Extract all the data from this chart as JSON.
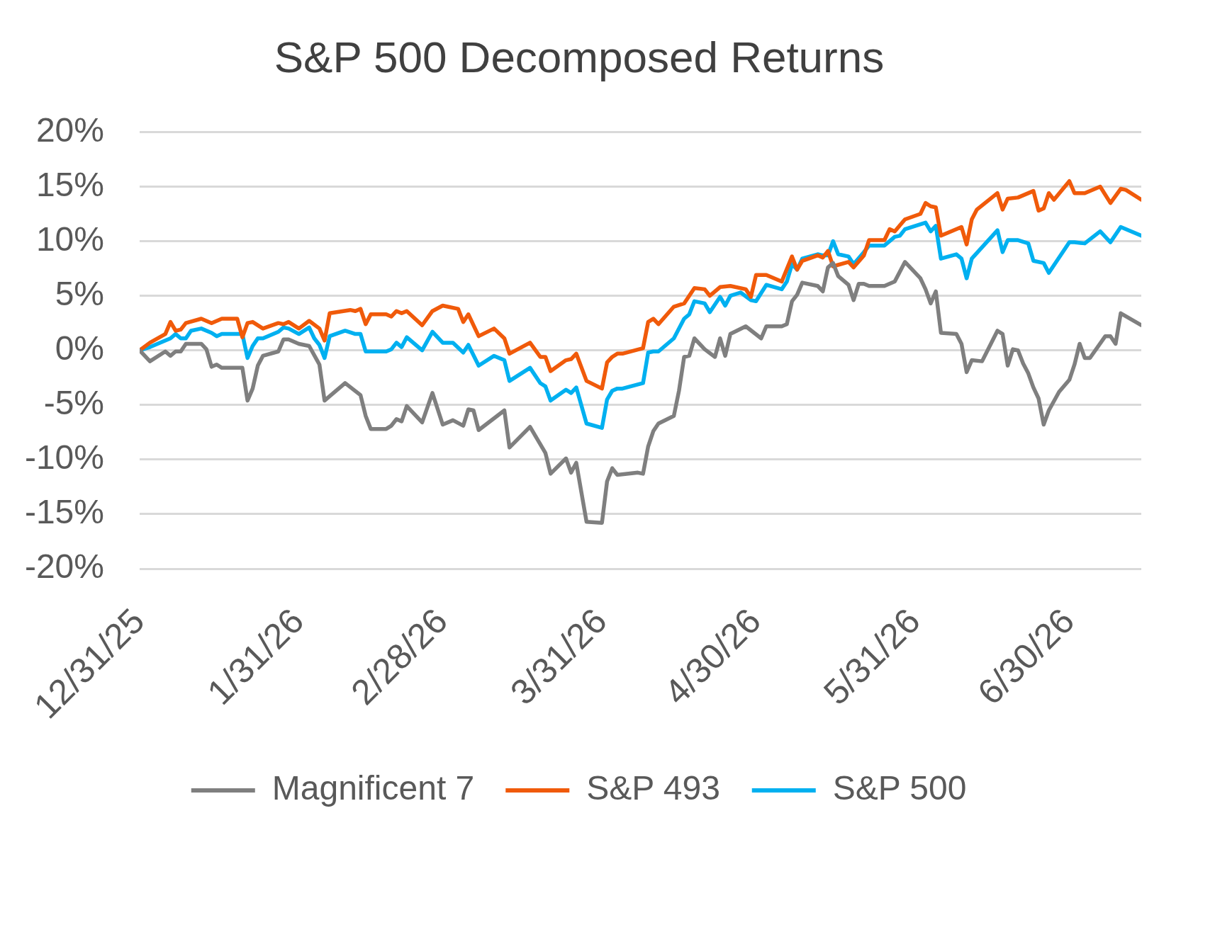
{
  "chart_data": {
    "type": "line",
    "title": "S&P 500 Decomposed Returns",
    "xlim": [
      "2025-12-31",
      "2026-07-14"
    ],
    "xticks": [
      {
        "value": "2025-12-31",
        "label": "12/31/25"
      },
      {
        "value": "2026-01-31",
        "label": "1/31/26"
      },
      {
        "value": "2026-02-28",
        "label": "2/28/26"
      },
      {
        "value": "2026-03-31",
        "label": "3/31/26"
      },
      {
        "value": "2026-04-30",
        "label": "4/30/26"
      },
      {
        "value": "2026-05-31",
        "label": "5/31/26"
      },
      {
        "value": "2026-06-30",
        "label": "6/30/26"
      }
    ],
    "ylim": [
      -20,
      20
    ],
    "yticks": [
      {
        "value": -20,
        "label": "-20%"
      },
      {
        "value": -15,
        "label": "-15%"
      },
      {
        "value": -10,
        "label": "-10%"
      },
      {
        "value": -5,
        "label": "-5%"
      },
      {
        "value": 0,
        "label": "0%"
      },
      {
        "value": 5,
        "label": "5%"
      },
      {
        "value": 10,
        "label": "10%"
      },
      {
        "value": 15,
        "label": "15%"
      },
      {
        "value": 20,
        "label": "20%"
      }
    ],
    "grid": "y",
    "legend": "bottom",
    "series": [
      {
        "name": "Magnificent 7",
        "color": "#7f7f7f",
        "x": [
          "2025-12-31",
          "2026-01-02",
          "2026-01-05",
          "2026-01-06",
          "2026-01-07",
          "2026-01-08",
          "2026-01-09",
          "2026-01-12",
          "2026-01-13",
          "2026-01-14",
          "2026-01-15",
          "2026-01-16",
          "2026-01-20",
          "2026-01-21",
          "2026-01-22",
          "2026-01-23",
          "2026-01-24",
          "2026-01-27",
          "2026-01-28",
          "2026-01-29",
          "2026-01-31",
          "2026-02-02",
          "2026-02-04",
          "2026-02-05",
          "2026-02-06",
          "2026-02-09",
          "2026-02-12",
          "2026-02-13",
          "2026-02-14",
          "2026-02-17",
          "2026-02-18",
          "2026-02-19",
          "2026-02-20",
          "2026-02-21",
          "2026-02-24",
          "2026-02-26",
          "2026-02-28",
          "2026-03-02",
          "2026-03-04",
          "2026-03-05",
          "2026-03-06",
          "2026-03-07",
          "2026-03-12",
          "2026-03-13",
          "2026-03-17",
          "2026-03-20",
          "2026-03-21",
          "2026-03-24",
          "2026-03-25",
          "2026-03-26",
          "2026-03-28",
          "2026-03-31",
          "2026-04-01",
          "2026-04-02",
          "2026-04-03",
          "2026-04-07",
          "2026-04-08",
          "2026-04-09",
          "2026-04-10",
          "2026-04-11",
          "2026-04-14",
          "2026-04-15",
          "2026-04-16",
          "2026-04-17",
          "2026-04-18",
          "2026-04-20",
          "2026-04-22",
          "2026-04-23",
          "2026-04-24",
          "2026-04-25",
          "2026-04-28",
          "2026-05-01",
          "2026-05-02",
          "2026-05-05",
          "2026-05-06",
          "2026-05-07",
          "2026-05-08",
          "2026-05-09",
          "2026-05-12",
          "2026-05-13",
          "2026-05-14",
          "2026-05-15",
          "2026-05-16",
          "2026-05-18",
          "2026-05-19",
          "2026-05-20",
          "2026-05-21",
          "2026-05-22",
          "2026-05-25",
          "2026-05-27",
          "2026-05-29",
          "2026-06-01",
          "2026-06-02",
          "2026-06-03",
          "2026-06-04",
          "2026-06-05",
          "2026-06-08",
          "2026-06-09",
          "2026-06-10",
          "2026-06-11",
          "2026-06-13",
          "2026-06-16",
          "2026-06-17",
          "2026-06-18",
          "2026-06-19",
          "2026-06-20",
          "2026-06-21",
          "2026-06-22",
          "2026-06-23",
          "2026-06-24",
          "2026-06-25",
          "2026-06-26",
          "2026-06-28",
          "2026-06-30",
          "2026-07-01",
          "2026-07-02",
          "2026-07-03",
          "2026-07-04",
          "2026-07-07",
          "2026-07-08",
          "2026-07-09",
          "2026-07-10",
          "2026-07-14"
        ],
        "values": [
          0,
          -1.0,
          -0.1,
          -0.5,
          -0.1,
          -0.1,
          0.6,
          0.6,
          0.1,
          -1.5,
          -1.3,
          -1.6,
          -1.6,
          -4.6,
          -3.5,
          -1.4,
          -0.5,
          -0.1,
          1.0,
          1.0,
          0.6,
          0.4,
          -1.3,
          -4.6,
          -4.2,
          -3.0,
          -4.1,
          -6.0,
          -7.2,
          -7.2,
          -6.9,
          -6.3,
          -6.5,
          -5.1,
          -6.6,
          -3.9,
          -6.8,
          -6.4,
          -6.9,
          -5.4,
          -5.5,
          -7.3,
          -5.5,
          -8.9,
          -7.0,
          -9.4,
          -11.3,
          -9.9,
          -11.2,
          -10.3,
          -15.7,
          -15.8,
          -12.0,
          -10.8,
          -11.4,
          -11.2,
          -11.3,
          -8.8,
          -7.4,
          -6.7,
          -6.0,
          -3.7,
          -0.6,
          -0.5,
          1.1,
          0.1,
          -0.6,
          1.1,
          -0.5,
          1.5,
          2.2,
          1.1,
          2.2,
          2.2,
          2.4,
          4.5,
          5.1,
          6.2,
          5.9,
          5.4,
          7.6,
          8.0,
          6.8,
          6.0,
          4.6,
          6.1,
          6.1,
          5.9,
          5.9,
          6.3,
          8.1,
          6.6,
          5.6,
          4.3,
          5.4,
          1.6,
          1.5,
          0.6,
          -2.0,
          -0.9,
          -1.0,
          1.8,
          1.5,
          -1.4,
          0.1,
          0.0,
          -1.2,
          -2.1,
          -3.4,
          -4.4,
          -6.8,
          -5.5,
          -3.8,
          -2.7,
          -1.3,
          0.6,
          -0.7,
          -0.7,
          1.3,
          1.3,
          0.6,
          3.4,
          2.3
        ]
      },
      {
        "name": "S&P 493",
        "color": "#f05a0a",
        "x": [
          "2025-12-31",
          "2026-01-02",
          "2026-01-05",
          "2026-01-06",
          "2026-01-07",
          "2026-01-08",
          "2026-01-09",
          "2026-01-12",
          "2026-01-14",
          "2026-01-16",
          "2026-01-19",
          "2026-01-20",
          "2026-01-21",
          "2026-01-22",
          "2026-01-24",
          "2026-01-27",
          "2026-01-28",
          "2026-01-29",
          "2026-01-31",
          "2026-02-02",
          "2026-02-04",
          "2026-02-05",
          "2026-02-06",
          "2026-02-10",
          "2026-02-11",
          "2026-02-12",
          "2026-02-13",
          "2026-02-14",
          "2026-02-17",
          "2026-02-18",
          "2026-02-19",
          "2026-02-20",
          "2026-02-21",
          "2026-02-24",
          "2026-02-26",
          "2026-02-28",
          "2026-03-03",
          "2026-03-04",
          "2026-03-05",
          "2026-03-07",
          "2026-03-10",
          "2026-03-12",
          "2026-03-13",
          "2026-03-17",
          "2026-03-19",
          "2026-03-20",
          "2026-03-21",
          "2026-03-24",
          "2026-03-25",
          "2026-03-26",
          "2026-03-28",
          "2026-03-31",
          "2026-04-01",
          "2026-04-02",
          "2026-04-03",
          "2026-04-04",
          "2026-04-08",
          "2026-04-09",
          "2026-04-10",
          "2026-04-11",
          "2026-04-14",
          "2026-04-16",
          "2026-04-18",
          "2026-04-20",
          "2026-04-21",
          "2026-04-23",
          "2026-04-25",
          "2026-04-28",
          "2026-04-29",
          "2026-04-30",
          "2026-05-02",
          "2026-05-05",
          "2026-05-07",
          "2026-05-08",
          "2026-05-09",
          "2026-05-12",
          "2026-05-13",
          "2026-05-14",
          "2026-05-15",
          "2026-05-18",
          "2026-05-19",
          "2026-05-21",
          "2026-05-22",
          "2026-05-25",
          "2026-05-26",
          "2026-05-27",
          "2026-05-29",
          "2026-06-01",
          "2026-06-02",
          "2026-06-03",
          "2026-06-04",
          "2026-06-05",
          "2026-06-09",
          "2026-06-10",
          "2026-06-11",
          "2026-06-12",
          "2026-06-16",
          "2026-06-17",
          "2026-06-18",
          "2026-06-20",
          "2026-06-23",
          "2026-06-24",
          "2026-06-25",
          "2026-06-26",
          "2026-06-27",
          "2026-06-30",
          "2026-07-01",
          "2026-07-03",
          "2026-07-06",
          "2026-07-08",
          "2026-07-10",
          "2026-07-11",
          "2026-07-14"
        ],
        "values": [
          0,
          0.7,
          1.5,
          2.6,
          1.8,
          1.9,
          2.5,
          2.9,
          2.5,
          2.9,
          2.9,
          1.2,
          2.5,
          2.6,
          2.0,
          2.5,
          2.4,
          2.6,
          2.0,
          2.7,
          2.0,
          0.9,
          3.4,
          3.7,
          3.6,
          3.8,
          2.4,
          3.3,
          3.3,
          3.1,
          3.6,
          3.4,
          3.6,
          2.3,
          3.6,
          4.1,
          3.8,
          2.6,
          3.3,
          1.3,
          2.0,
          1.1,
          -0.3,
          0.7,
          -0.6,
          -0.6,
          -1.9,
          -0.9,
          -0.8,
          -0.3,
          -2.8,
          -3.5,
          -1.1,
          -0.6,
          -0.3,
          -0.3,
          0.2,
          2.6,
          2.9,
          2.4,
          4.0,
          4.3,
          5.7,
          5.6,
          5.0,
          5.8,
          5.9,
          5.6,
          4.9,
          6.9,
          6.9,
          6.3,
          8.6,
          7.4,
          8.2,
          8.7,
          8.5,
          9.1,
          7.7,
          8.1,
          7.6,
          8.7,
          10.1,
          10.1,
          11.1,
          10.9,
          12.0,
          12.5,
          13.5,
          13.2,
          13.1,
          10.5,
          11.3,
          9.7,
          12.0,
          12.9,
          14.4,
          12.9,
          13.9,
          14.0,
          14.6,
          12.8,
          13.0,
          14.4,
          13.8,
          15.5,
          14.4,
          14.4,
          15.0,
          13.5,
          14.8,
          14.7,
          13.8
        ]
      },
      {
        "name": "S&P 500",
        "color": "#00b0f0",
        "x": [
          "2025-12-31",
          "2026-01-02",
          "2026-01-06",
          "2026-01-07",
          "2026-01-08",
          "2026-01-09",
          "2026-01-10",
          "2026-01-12",
          "2026-01-14",
          "2026-01-15",
          "2026-01-16",
          "2026-01-20",
          "2026-01-21",
          "2026-01-22",
          "2026-01-23",
          "2026-01-24",
          "2026-01-27",
          "2026-01-28",
          "2026-01-29",
          "2026-01-31",
          "2026-02-02",
          "2026-02-03",
          "2026-02-04",
          "2026-02-05",
          "2026-02-06",
          "2026-02-09",
          "2026-02-11",
          "2026-02-12",
          "2026-02-13",
          "2026-02-17",
          "2026-02-18",
          "2026-02-19",
          "2026-02-20",
          "2026-02-21",
          "2026-02-24",
          "2026-02-26",
          "2026-02-28",
          "2026-03-02",
          "2026-03-04",
          "2026-03-05",
          "2026-03-07",
          "2026-03-10",
          "2026-03-12",
          "2026-03-13",
          "2026-03-17",
          "2026-03-19",
          "2026-03-20",
          "2026-03-21",
          "2026-03-24",
          "2026-03-25",
          "2026-03-26",
          "2026-03-28",
          "2026-03-31",
          "2026-04-01",
          "2026-04-02",
          "2026-04-03",
          "2026-04-04",
          "2026-04-08",
          "2026-04-09",
          "2026-04-10",
          "2026-04-11",
          "2026-04-14",
          "2026-04-16",
          "2026-04-17",
          "2026-04-18",
          "2026-04-20",
          "2026-04-21",
          "2026-04-23",
          "2026-04-24",
          "2026-04-25",
          "2026-04-27",
          "2026-04-29",
          "2026-04-30",
          "2026-05-02",
          "2026-05-05",
          "2026-05-06",
          "2026-05-07",
          "2026-05-08",
          "2026-05-09",
          "2026-05-12",
          "2026-05-13",
          "2026-05-14",
          "2026-05-15",
          "2026-05-16",
          "2026-05-18",
          "2026-05-19",
          "2026-05-21",
          "2026-05-22",
          "2026-05-25",
          "2026-05-27",
          "2026-05-28",
          "2026-05-29",
          "2026-06-02",
          "2026-06-03",
          "2026-06-04",
          "2026-06-05",
          "2026-06-08",
          "2026-06-09",
          "2026-06-10",
          "2026-06-11",
          "2026-06-16",
          "2026-06-17",
          "2026-06-18",
          "2026-06-20",
          "2026-06-22",
          "2026-06-23",
          "2026-06-25",
          "2026-06-26",
          "2026-06-30",
          "2026-07-01",
          "2026-07-03",
          "2026-07-06",
          "2026-07-08",
          "2026-07-10",
          "2026-07-14"
        ],
        "values": [
          0,
          0.3,
          1.1,
          1.5,
          1.1,
          1.1,
          1.8,
          2.0,
          1.6,
          1.3,
          1.5,
          1.5,
          -0.7,
          0.4,
          1.1,
          1.1,
          1.7,
          2.1,
          2.0,
          1.5,
          2.1,
          1.1,
          0.5,
          -0.7,
          1.3,
          1.8,
          1.5,
          1.5,
          -0.1,
          -0.1,
          0.1,
          0.7,
          0.3,
          1.2,
          0.0,
          1.7,
          0.7,
          0.7,
          -0.2,
          0.5,
          -1.4,
          -0.5,
          -0.9,
          -2.8,
          -1.6,
          -3.0,
          -3.3,
          -4.6,
          -3.6,
          -3.9,
          -3.4,
          -6.7,
          -7.1,
          -4.5,
          -3.7,
          -3.5,
          -3.5,
          -3.0,
          -0.2,
          -0.1,
          -0.1,
          1.1,
          2.9,
          3.3,
          4.5,
          4.3,
          3.5,
          4.9,
          4.1,
          5.0,
          5.3,
          4.6,
          4.5,
          6.0,
          5.6,
          6.3,
          7.9,
          7.4,
          8.4,
          8.8,
          8.7,
          8.7,
          10.0,
          8.8,
          8.6,
          7.9,
          9.0,
          9.6,
          9.6,
          10.4,
          10.5,
          11.1,
          11.7,
          10.9,
          11.4,
          8.4,
          8.8,
          8.4,
          6.6,
          8.4,
          11.0,
          9.0,
          10.1,
          10.1,
          9.8,
          8.2,
          8.0,
          7.1,
          9.9,
          9.9,
          9.8,
          10.9,
          9.9,
          11.3,
          10.5
        ]
      }
    ]
  }
}
